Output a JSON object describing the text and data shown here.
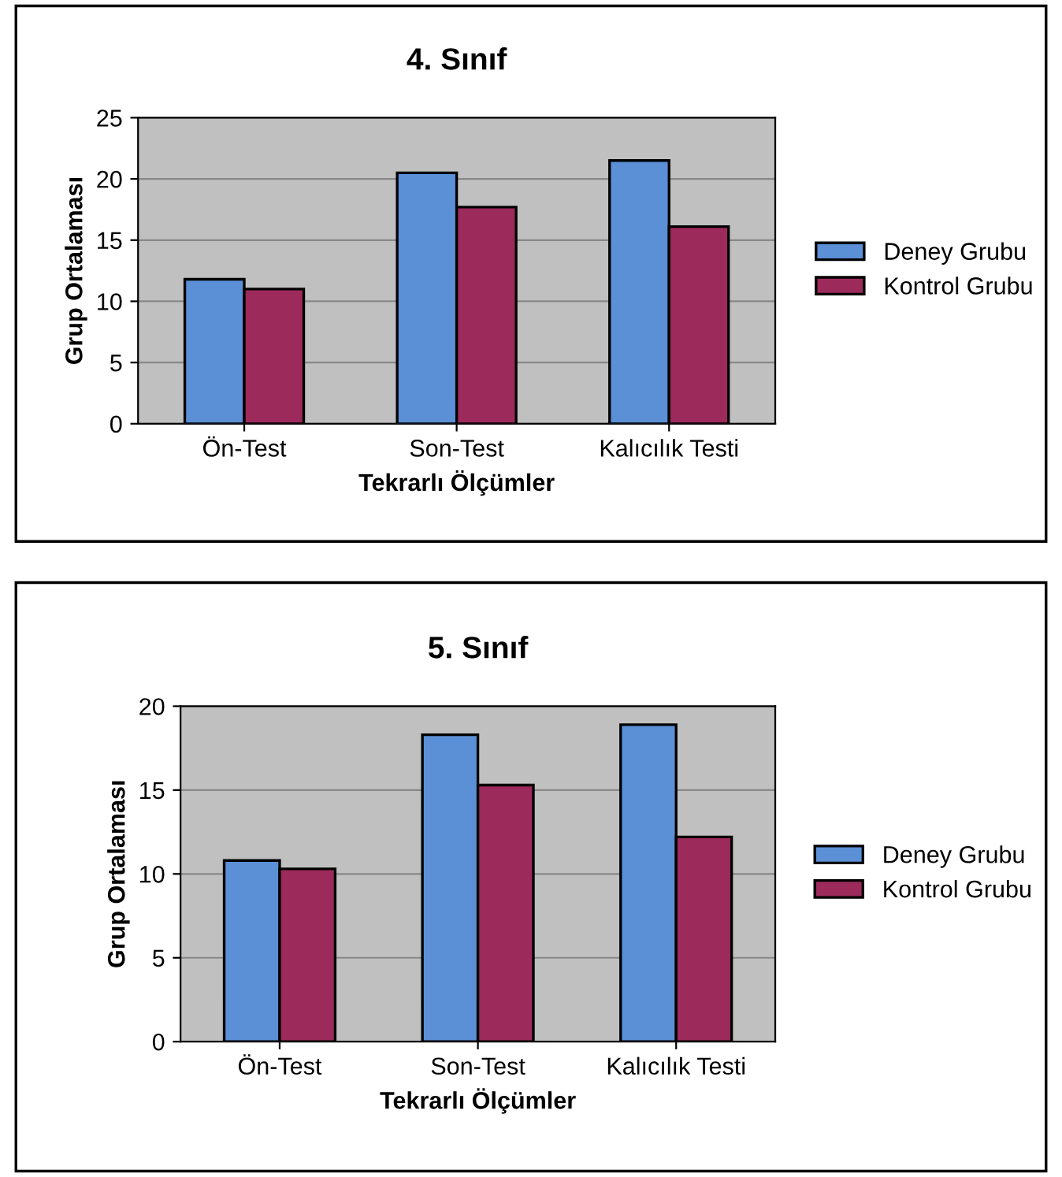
{
  "chart_data": [
    {
      "type": "bar",
      "title": "4. Sınıf",
      "xlabel": "Tekrarlı Ölçümler",
      "ylabel": "Grup Ortalaması",
      "categories": [
        "Ön-Test",
        "Son-Test",
        "Kalıcılık Testi"
      ],
      "series": [
        {
          "name": "Deney Grubu",
          "color": "#5b8fd6",
          "values": [
            11.8,
            20.5,
            21.5
          ]
        },
        {
          "name": "Kontrol Grubu",
          "color": "#9c2a5a",
          "values": [
            11.0,
            17.7,
            16.1
          ]
        }
      ],
      "ylim": [
        0,
        25
      ],
      "yticks": [
        0,
        5,
        10,
        15,
        20,
        25
      ],
      "grid": "y",
      "legend": "right"
    },
    {
      "type": "bar",
      "title": "5. Sınıf",
      "xlabel": "Tekrarlı Ölçümler",
      "ylabel": "Grup Ortalaması",
      "categories": [
        "Ön-Test",
        "Son-Test",
        "Kalıcılık Testi"
      ],
      "series": [
        {
          "name": "Deney Grubu",
          "color": "#5b8fd6",
          "values": [
            10.8,
            18.3,
            18.9
          ]
        },
        {
          "name": "Kontrol Grubu",
          "color": "#9c2a5a",
          "values": [
            10.3,
            15.3,
            12.2
          ]
        }
      ],
      "ylim": [
        0,
        20
      ],
      "yticks": [
        0,
        5,
        10,
        15,
        20
      ],
      "grid": "y",
      "legend": "right"
    }
  ]
}
